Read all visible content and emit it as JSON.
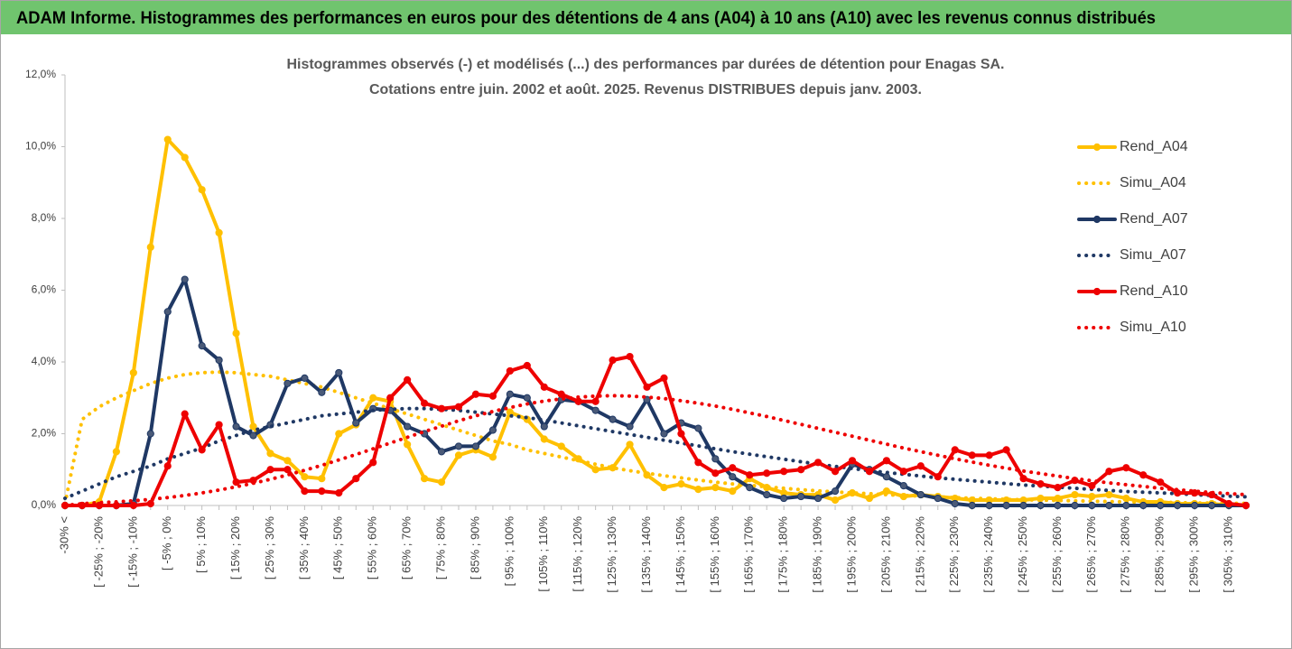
{
  "chart_data": {
    "type": "line",
    "header": "ADAM Informe. Histogrammes des performances en euros pour des détentions de 4 ans (A04) à 10 ans (A10) avec les revenus connus distribués",
    "title": "Histogrammes observés (-) et modélisés (...) des performances par durées de détention pour Enagas SA.",
    "subtitle": "Cotations entre juin. 2002 et août. 2025. Revenus DISTRIBUES depuis janv. 2003.",
    "categories": [
      "-30% <",
      null,
      "[ -25% ; -20%",
      null,
      "[ -15% ; -10%",
      null,
      "[ -5% ; 0%",
      null,
      "[ 5% ; 10%",
      null,
      "[ 15% ; 20%",
      null,
      "[ 25% ; 30%",
      null,
      "[ 35% ; 40%",
      null,
      "[ 45% ; 50%",
      null,
      "[ 55% ; 60%",
      null,
      "[ 65% ; 70%",
      null,
      "[ 75% ; 80%",
      null,
      "[ 85% ; 90%",
      null,
      "[ 95% ; 100%",
      null,
      "[ 105% ; 110%",
      null,
      "[ 115% ; 120%",
      null,
      "[ 125% ; 130%",
      null,
      "[ 135% ; 140%",
      null,
      "[ 145% ; 150%",
      null,
      "[ 155% ; 160%",
      null,
      "[ 165% ; 170%",
      null,
      "[ 175% ; 180%",
      null,
      "[ 185% ; 190%",
      null,
      "[ 195% ; 200%",
      null,
      "[ 205% ; 210%",
      null,
      "[ 215% ; 220%",
      null,
      "[ 225% ; 230%",
      null,
      "[ 235% ; 240%",
      null,
      "[ 245% ; 250%",
      null,
      "[ 255% ; 260%",
      null,
      "[ 265% ; 270%",
      null,
      "[ 275% ; 280%",
      null,
      "[ 285% ; 290%",
      null,
      "[ 295% ; 300%",
      null,
      "[ 305% ; 310%",
      null
    ],
    "series": [
      {
        "name": "Rend_A04",
        "color": "#ffc000",
        "dash": "solid",
        "markers": true,
        "values": [
          0,
          0,
          0.1,
          1.5,
          3.7,
          7.2,
          10.2,
          9.7,
          8.8,
          7.6,
          4.8,
          2.2,
          1.45,
          1.25,
          0.8,
          0.75,
          2.0,
          2.25,
          3.0,
          2.9,
          1.7,
          0.75,
          0.65,
          1.4,
          1.55,
          1.35,
          2.6,
          2.4,
          1.85,
          1.65,
          1.3,
          1.0,
          1.05,
          1.7,
          0.85,
          0.5,
          0.6,
          0.45,
          0.5,
          0.4,
          0.75,
          0.5,
          0.35,
          0.3,
          0.3,
          0.15,
          0.35,
          0.2,
          0.4,
          0.25,
          0.3,
          0.25,
          0.2,
          0.15,
          0.15,
          0.15,
          0.15,
          0.2,
          0.2,
          0.3,
          0.25,
          0.3,
          0.2,
          0.1,
          0.1,
          0.05,
          0.05,
          0.05,
          0,
          0
        ]
      },
      {
        "name": "Simu_A04",
        "color": "#ffc000",
        "dash": "dotted",
        "markers": false,
        "values": [
          0.05,
          2.4,
          2.75,
          3.0,
          3.2,
          3.4,
          3.55,
          3.65,
          3.7,
          3.72,
          3.7,
          3.65,
          3.6,
          3.5,
          3.4,
          3.3,
          3.15,
          3.0,
          2.85,
          2.7,
          2.55,
          2.4,
          2.25,
          2.1,
          1.95,
          1.8,
          1.7,
          1.55,
          1.45,
          1.35,
          1.25,
          1.15,
          1.05,
          0.97,
          0.9,
          0.83,
          0.77,
          0.71,
          0.65,
          0.6,
          0.56,
          0.52,
          0.48,
          0.44,
          0.41,
          0.38,
          0.35,
          0.33,
          0.3,
          0.28,
          0.26,
          0.24,
          0.22,
          0.2,
          0.19,
          0.17,
          0.16,
          0.15,
          0.14,
          0.13,
          0.12,
          0.11,
          0.1,
          0.09,
          0.09,
          0.08,
          0.07,
          0.07,
          0.06,
          0.06
        ]
      },
      {
        "name": "Rend_A07",
        "color": "#1f3864",
        "dash": "solid",
        "markers": true,
        "values": [
          0,
          0,
          0,
          0,
          0.05,
          2.0,
          5.4,
          6.3,
          4.45,
          4.05,
          2.2,
          1.95,
          2.25,
          3.4,
          3.55,
          3.15,
          3.7,
          2.3,
          2.7,
          2.65,
          2.2,
          2.0,
          1.5,
          1.65,
          1.65,
          2.1,
          3.1,
          3.0,
          2.2,
          2.95,
          2.9,
          2.65,
          2.4,
          2.2,
          2.95,
          2.0,
          2.3,
          2.15,
          1.3,
          0.8,
          0.5,
          0.3,
          0.2,
          0.25,
          0.2,
          0.4,
          1.15,
          1.0,
          0.8,
          0.55,
          0.3,
          0.2,
          0.05,
          0,
          0,
          0,
          0,
          0,
          0,
          0,
          0,
          0,
          0,
          0,
          0,
          0,
          0,
          0,
          0,
          0
        ]
      },
      {
        "name": "Simu_A07",
        "color": "#1f3864",
        "dash": "dotted",
        "markers": false,
        "values": [
          0.2,
          0.4,
          0.6,
          0.8,
          0.95,
          1.1,
          1.3,
          1.45,
          1.6,
          1.8,
          1.95,
          2.1,
          2.2,
          2.3,
          2.4,
          2.5,
          2.55,
          2.6,
          2.65,
          2.68,
          2.7,
          2.7,
          2.68,
          2.65,
          2.6,
          2.55,
          2.5,
          2.45,
          2.38,
          2.3,
          2.22,
          2.14,
          2.06,
          1.98,
          1.9,
          1.82,
          1.74,
          1.66,
          1.58,
          1.5,
          1.43,
          1.36,
          1.29,
          1.22,
          1.15,
          1.09,
          1.03,
          0.97,
          0.92,
          0.87,
          0.82,
          0.77,
          0.73,
          0.69,
          0.65,
          0.61,
          0.57,
          0.54,
          0.51,
          0.48,
          0.45,
          0.42,
          0.39,
          0.37,
          0.35,
          0.33,
          0.3,
          0.28,
          0.26,
          0.24
        ]
      },
      {
        "name": "Rend_A10",
        "color": "#ee0000",
        "dash": "solid",
        "markers": true,
        "values": [
          0,
          0,
          0,
          0,
          0,
          0.05,
          1.1,
          2.55,
          1.55,
          2.25,
          0.65,
          0.7,
          1.0,
          1.0,
          0.4,
          0.4,
          0.35,
          0.75,
          1.2,
          3.0,
          3.5,
          2.85,
          2.7,
          2.75,
          3.1,
          3.05,
          3.75,
          3.9,
          3.3,
          3.1,
          2.9,
          2.9,
          4.05,
          4.15,
          3.3,
          3.55,
          2.0,
          1.2,
          0.9,
          1.05,
          0.85,
          0.9,
          0.95,
          1.0,
          1.2,
          0.95,
          1.25,
          0.95,
          1.25,
          0.95,
          1.1,
          0.8,
          1.55,
          1.4,
          1.4,
          1.55,
          0.75,
          0.6,
          0.5,
          0.7,
          0.55,
          0.95,
          1.05,
          0.85,
          0.65,
          0.35,
          0.35,
          0.3,
          0.05,
          0
        ]
      },
      {
        "name": "Simu_A10",
        "color": "#ee0000",
        "dash": "dotted",
        "markers": false,
        "values": [
          0,
          0.05,
          0.08,
          0.1,
          0.13,
          0.17,
          0.22,
          0.28,
          0.35,
          0.43,
          0.52,
          0.62,
          0.73,
          0.85,
          0.98,
          1.12,
          1.27,
          1.42,
          1.58,
          1.74,
          1.9,
          2.06,
          2.21,
          2.36,
          2.5,
          2.62,
          2.73,
          2.83,
          2.91,
          2.97,
          3.02,
          3.05,
          3.06,
          3.05,
          3.02,
          2.98,
          2.92,
          2.85,
          2.77,
          2.68,
          2.58,
          2.48,
          2.37,
          2.26,
          2.15,
          2.04,
          1.93,
          1.82,
          1.71,
          1.6,
          1.5,
          1.4,
          1.3,
          1.21,
          1.12,
          1.04,
          0.96,
          0.89,
          0.82,
          0.75,
          0.69,
          0.63,
          0.58,
          0.53,
          0.48,
          0.44,
          0.4,
          0.36,
          0.33,
          0.3
        ]
      }
    ],
    "ylim": [
      0,
      12
    ],
    "yticks": [
      {
        "value": 0,
        "label": "0,0%"
      },
      {
        "value": 2,
        "label": "2,0%"
      },
      {
        "value": 4,
        "label": "4,0%"
      },
      {
        "value": 6,
        "label": "6,0%"
      },
      {
        "value": 8,
        "label": "8,0%"
      },
      {
        "value": 10,
        "label": "10,0%"
      },
      {
        "value": 12,
        "label": "12,0%"
      }
    ],
    "legend": "right"
  }
}
